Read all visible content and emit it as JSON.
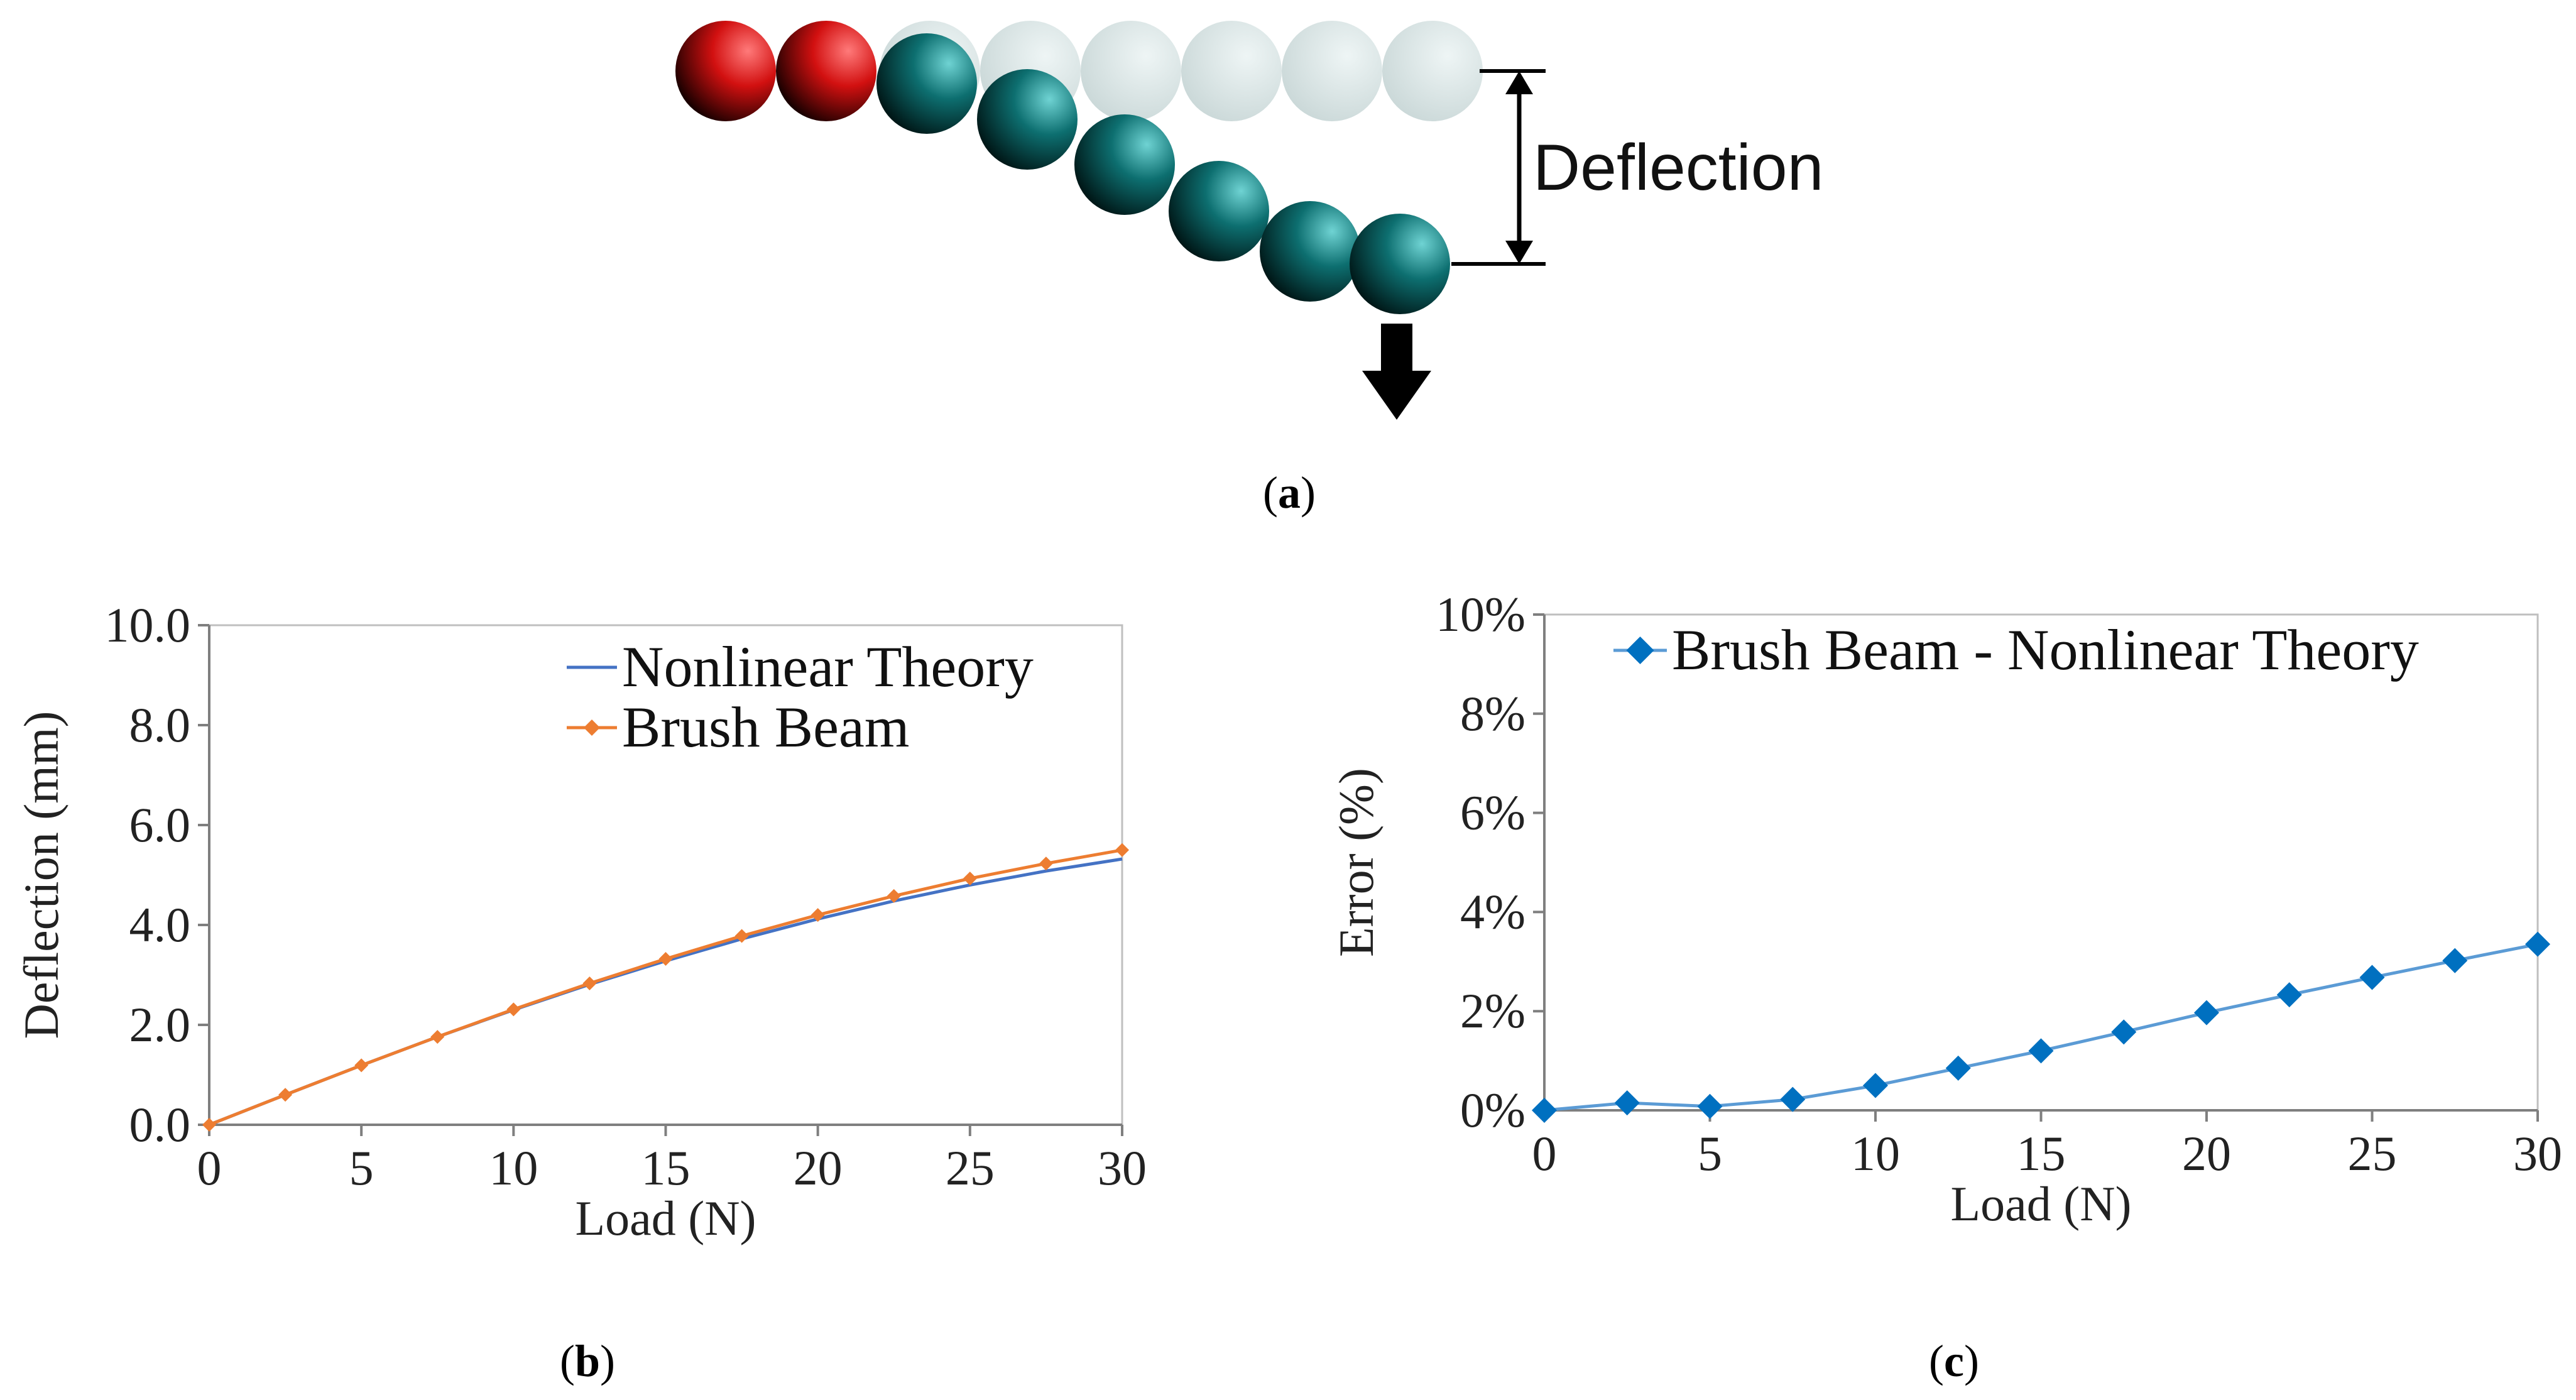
{
  "panel_a": {
    "deflection_label": "Deflection",
    "caption_letter": "a",
    "fixed_ball_color": "#d21010",
    "bent_ball_color": "#0d6f70",
    "ghost_ball_color": "#cfdcdc",
    "arrow_color": "#000000"
  },
  "chart_data": [
    {
      "id": "b",
      "type": "line",
      "caption_letter": "b",
      "title": "",
      "xlabel": "Load (N)",
      "ylabel": "Deflection (mm)",
      "xlim": [
        0,
        30
      ],
      "ylim": [
        0,
        10
      ],
      "xticks": [
        0,
        5,
        10,
        15,
        20,
        25,
        30
      ],
      "xtick_labels": [
        "0",
        "5",
        "10",
        "15",
        "20",
        "25",
        "30"
      ],
      "yticks": [
        0,
        2,
        4,
        6,
        8,
        10
      ],
      "ytick_labels": [
        "0.0",
        "2.0",
        "4.0",
        "6.0",
        "8.0",
        "10.0"
      ],
      "grid": false,
      "legend_position": "top-right",
      "series": [
        {
          "name": "Nonlinear Theory",
          "color": "#4472c4",
          "marker": "none",
          "x": [
            0,
            2.5,
            5,
            7.5,
            10,
            12.5,
            15,
            17.5,
            20,
            22.5,
            25,
            27.5,
            30
          ],
          "y": [
            0,
            0.6,
            1.19,
            1.76,
            2.3,
            2.81,
            3.28,
            3.72,
            4.12,
            4.48,
            4.8,
            5.08,
            5.32
          ]
        },
        {
          "name": "Brush Beam",
          "color": "#ed7d31",
          "marker": "diamond",
          "x": [
            0,
            2.5,
            5,
            7.5,
            10,
            12.5,
            15,
            17.5,
            20,
            22.5,
            25,
            27.5,
            30
          ],
          "y": [
            0,
            0.6,
            1.19,
            1.76,
            2.31,
            2.83,
            3.32,
            3.78,
            4.2,
            4.58,
            4.93,
            5.23,
            5.5
          ]
        }
      ]
    },
    {
      "id": "c",
      "type": "line",
      "caption_letter": "c",
      "title": "",
      "xlabel": "Load (N)",
      "ylabel": "Error (%)",
      "xlim": [
        0,
        30
      ],
      "ylim": [
        0,
        10
      ],
      "xticks": [
        0,
        5,
        10,
        15,
        20,
        25,
        30
      ],
      "xtick_labels": [
        "0",
        "5",
        "10",
        "15",
        "20",
        "25",
        "30"
      ],
      "yticks": [
        0,
        2,
        4,
        6,
        8,
        10
      ],
      "ytick_labels": [
        "0%",
        "2%",
        "4%",
        "6%",
        "8%",
        "10%"
      ],
      "grid": false,
      "legend_position": "top-right",
      "series": [
        {
          "name": "Brush Beam - Nonlinear Theory",
          "color": "#5b9bd5",
          "marker_color": "#0070c0",
          "marker": "diamond",
          "x": [
            0,
            2.5,
            5,
            7.5,
            10,
            12.5,
            15,
            17.5,
            20,
            22.5,
            25,
            27.5,
            30
          ],
          "y": [
            0,
            0.15,
            0.08,
            0.22,
            0.5,
            0.85,
            1.2,
            1.58,
            1.97,
            2.33,
            2.68,
            3.02,
            3.35
          ]
        }
      ]
    }
  ]
}
